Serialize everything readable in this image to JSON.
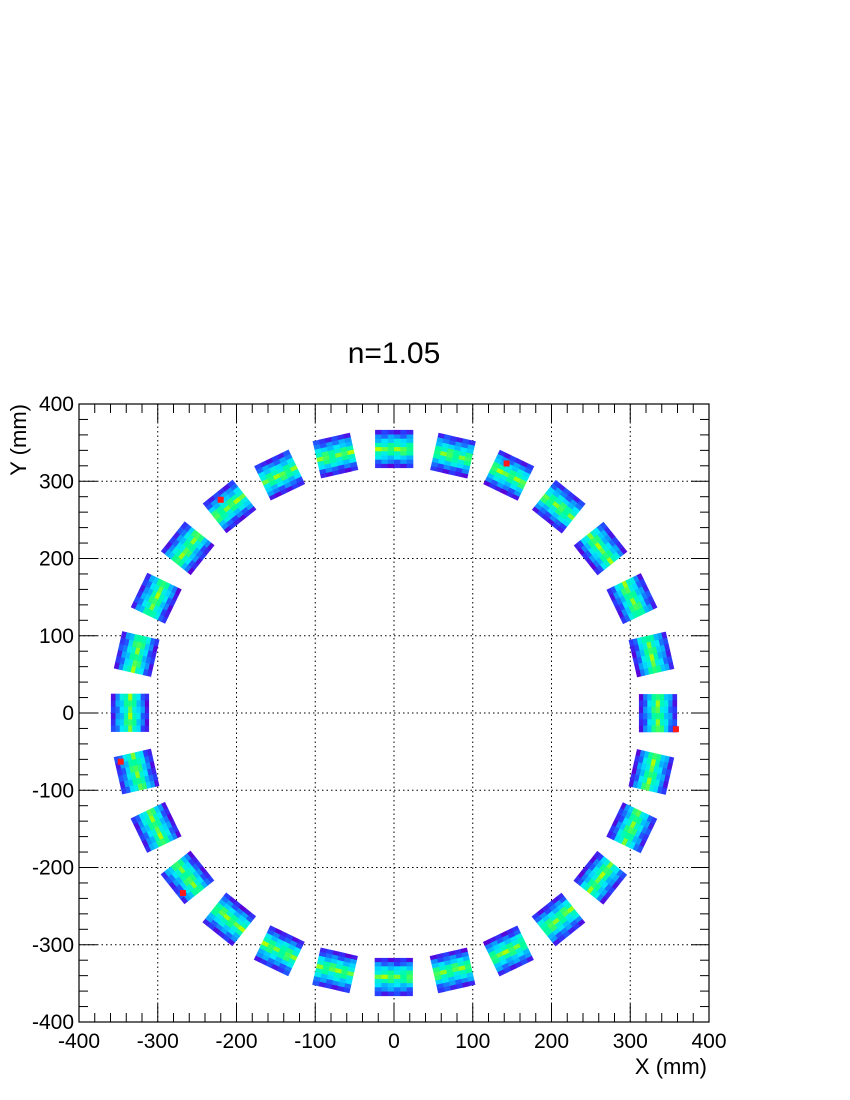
{
  "chart_data": {
    "type": "heatmap",
    "title": "n=1.05",
    "xlabel": "X (mm)",
    "ylabel": "Y (mm)",
    "xlim": [
      -400,
      400
    ],
    "ylim": [
      -400,
      400
    ],
    "x_ticks": [
      "-400",
      "-300",
      "-200",
      "-100",
      "0",
      "100",
      "200",
      "300",
      "400"
    ],
    "y_ticks": [
      "-400",
      "-300",
      "-200",
      "-100",
      "0",
      "100",
      "200",
      "300",
      "400"
    ],
    "grid": true,
    "ring": {
      "modules": 28,
      "radius_mm": 335,
      "start_angle_deg": 0,
      "radial_extent_mm": [
        311,
        359
      ],
      "tangential_extent_mm": [
        -24,
        24
      ],
      "radial_profile": [
        0.1,
        0.3,
        0.55,
        0.75,
        0.9,
        0.75,
        0.55,
        0.35,
        0.15
      ],
      "hot_spots": [
        {
          "x": 358,
          "y": -21
        },
        {
          "x": 143,
          "y": 323
        },
        {
          "x": -220,
          "y": 276
        },
        {
          "x": -347,
          "y": -63
        },
        {
          "x": -268,
          "y": -233
        }
      ]
    },
    "palette": [
      "#5a00d8",
      "#2a3cff",
      "#0aa0ff",
      "#00e8ff",
      "#00ff9a",
      "#b0ff00",
      "#ff1a1a"
    ]
  }
}
